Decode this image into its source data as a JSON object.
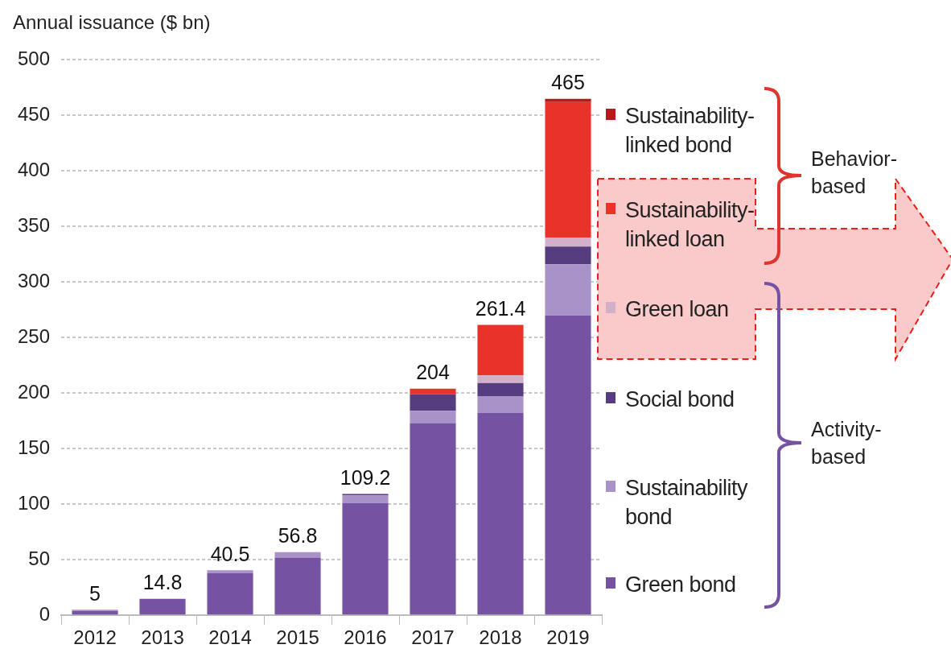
{
  "chart_data": {
    "type": "bar",
    "ylabel": "Annual issuance ($ bn)",
    "categories": [
      "2012",
      "2013",
      "2014",
      "2015",
      "2016",
      "2017",
      "2018",
      "2019"
    ],
    "stacked": true,
    "series": [
      {
        "name": "Green bond",
        "color": "#7652a3",
        "values": [
          4,
          14.8,
          38,
          52,
          101,
          173,
          182,
          270
        ]
      },
      {
        "name": "Sustainability bond",
        "color": "#a992c8",
        "values": [
          1,
          null,
          2.5,
          4.8,
          7,
          11,
          15,
          46
        ]
      },
      {
        "name": "Social bond",
        "color": "#553d80",
        "values": [
          null,
          null,
          null,
          null,
          1.2,
          15,
          12,
          16
        ]
      },
      {
        "name": "Green loan",
        "color": "#d4afcc",
        "values": [
          null,
          null,
          null,
          null,
          null,
          null,
          7,
          8
        ]
      },
      {
        "name": "Sustainability-linked loan",
        "color": "#e8322a",
        "values": [
          null,
          null,
          null,
          null,
          null,
          5,
          45.4,
          122
        ]
      },
      {
        "name": "Sustainability-linked bond",
        "color": "#b5191b",
        "values": [
          null,
          null,
          null,
          null,
          null,
          null,
          null,
          3
        ]
      }
    ],
    "totals": [
      "5",
      "14.8",
      "40.5",
      "56.8",
      "109.2",
      "204",
      "261.4",
      "465"
    ],
    "ylim": [
      0,
      500
    ],
    "yticks": [
      0,
      50,
      100,
      150,
      200,
      250,
      300,
      350,
      400,
      450,
      500
    ],
    "grid": "y",
    "legend": "right",
    "annotations": [
      "Behavior-based",
      "Activity-based"
    ]
  }
}
